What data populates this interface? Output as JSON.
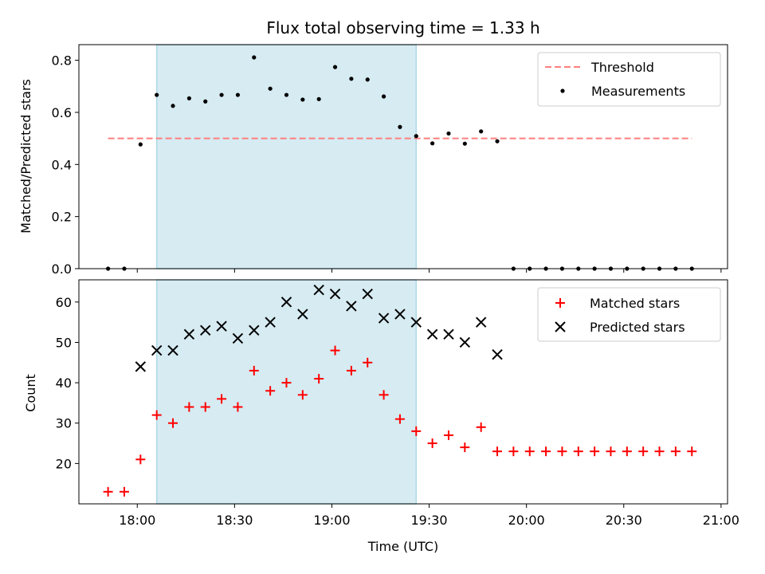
{
  "chart_data": [
    {
      "type": "scatter",
      "title": "Flux total observing time = 1.33 h",
      "xlabel": "",
      "ylabel": "Matched/Predicted stars",
      "xlim": [
        "17:42",
        "21:02"
      ],
      "ylim": [
        0,
        0.86
      ],
      "yticks": [
        0.0,
        0.2,
        0.4,
        0.6,
        0.8
      ],
      "ytick_labels": [
        "0.0",
        "0.2",
        "0.4",
        "0.6",
        "0.8"
      ],
      "grid": false,
      "legend": {
        "position": "top-right"
      },
      "shaded_region": {
        "x": [
          "18:06",
          "19:26"
        ],
        "color": "#add8e6"
      },
      "series": [
        {
          "name": "Threshold",
          "kind": "line",
          "style": "dashed",
          "color": "#ff7f7f",
          "x": [
            "17:51",
            "20:51"
          ],
          "y": [
            0.5,
            0.5
          ]
        },
        {
          "name": "Measurements",
          "kind": "scatter",
          "marker": "dot",
          "color": "#000000",
          "x": [
            "17:51",
            "17:56",
            "18:01",
            "18:06",
            "18:11",
            "18:16",
            "18:21",
            "18:26",
            "18:31",
            "18:36",
            "18:41",
            "18:46",
            "18:51",
            "18:56",
            "19:01",
            "19:06",
            "19:11",
            "19:16",
            "19:21",
            "19:26",
            "19:31",
            "19:36",
            "19:41",
            "19:46",
            "19:51",
            "19:56",
            "20:01",
            "20:06",
            "20:11",
            "20:16",
            "20:21",
            "20:26",
            "20:31",
            "20:36",
            "20:41",
            "20:46",
            "20:51"
          ],
          "y": [
            0.0,
            0.0,
            0.477,
            0.667,
            0.625,
            0.654,
            0.642,
            0.667,
            0.667,
            0.811,
            0.691,
            0.667,
            0.649,
            0.651,
            0.774,
            0.729,
            0.726,
            0.661,
            0.544,
            0.509,
            0.481,
            0.519,
            0.48,
            0.527,
            0.489,
            0.0,
            0.0,
            0.0,
            0.0,
            0.0,
            0.0,
            0.0,
            0.0,
            0.0,
            0.0,
            0.0,
            0.0
          ]
        }
      ]
    },
    {
      "type": "scatter",
      "title": "",
      "xlabel": "Time (UTC)",
      "ylabel": "Count",
      "xlim": [
        "17:42",
        "21:02"
      ],
      "ylim": [
        10,
        65.5
      ],
      "xticks": [
        "18:00",
        "18:30",
        "19:00",
        "19:30",
        "20:00",
        "20:30",
        "21:00"
      ],
      "yticks": [
        20,
        30,
        40,
        50,
        60
      ],
      "grid": false,
      "legend": {
        "position": "top-right"
      },
      "shaded_region": {
        "x": [
          "18:06",
          "19:26"
        ],
        "color": "#add8e6"
      },
      "series": [
        {
          "name": "Matched stars",
          "kind": "scatter",
          "marker": "plus",
          "color": "#ff0000",
          "x": [
            "17:51",
            "17:56",
            "18:01",
            "18:06",
            "18:11",
            "18:16",
            "18:21",
            "18:26",
            "18:31",
            "18:36",
            "18:41",
            "18:46",
            "18:51",
            "18:56",
            "19:01",
            "19:06",
            "19:11",
            "19:16",
            "19:21",
            "19:26",
            "19:31",
            "19:36",
            "19:41",
            "19:46",
            "19:51",
            "19:56",
            "20:01",
            "20:06",
            "20:11",
            "20:16",
            "20:21",
            "20:26",
            "20:31",
            "20:36",
            "20:41",
            "20:46",
            "20:51"
          ],
          "y": [
            13,
            13,
            21,
            32,
            30,
            34,
            34,
            36,
            34,
            43,
            38,
            40,
            37,
            41,
            48,
            43,
            45,
            37,
            31,
            28,
            25,
            27,
            24,
            29,
            23,
            23,
            23,
            23,
            23,
            23,
            23,
            23,
            23,
            23,
            23,
            23,
            23
          ]
        },
        {
          "name": "Predicted stars",
          "kind": "scatter",
          "marker": "x",
          "color": "#000000",
          "x": [
            "18:01",
            "18:06",
            "18:11",
            "18:16",
            "18:21",
            "18:26",
            "18:31",
            "18:36",
            "18:41",
            "18:46",
            "18:51",
            "18:56",
            "19:01",
            "19:06",
            "19:11",
            "19:16",
            "19:21",
            "19:26",
            "19:31",
            "19:36",
            "19:41",
            "19:46",
            "19:51"
          ],
          "y": [
            44,
            48,
            48,
            52,
            53,
            54,
            51,
            53,
            55,
            60,
            57,
            63,
            62,
            59,
            62,
            56,
            57,
            55,
            52,
            52,
            50,
            55,
            47
          ]
        }
      ]
    }
  ]
}
